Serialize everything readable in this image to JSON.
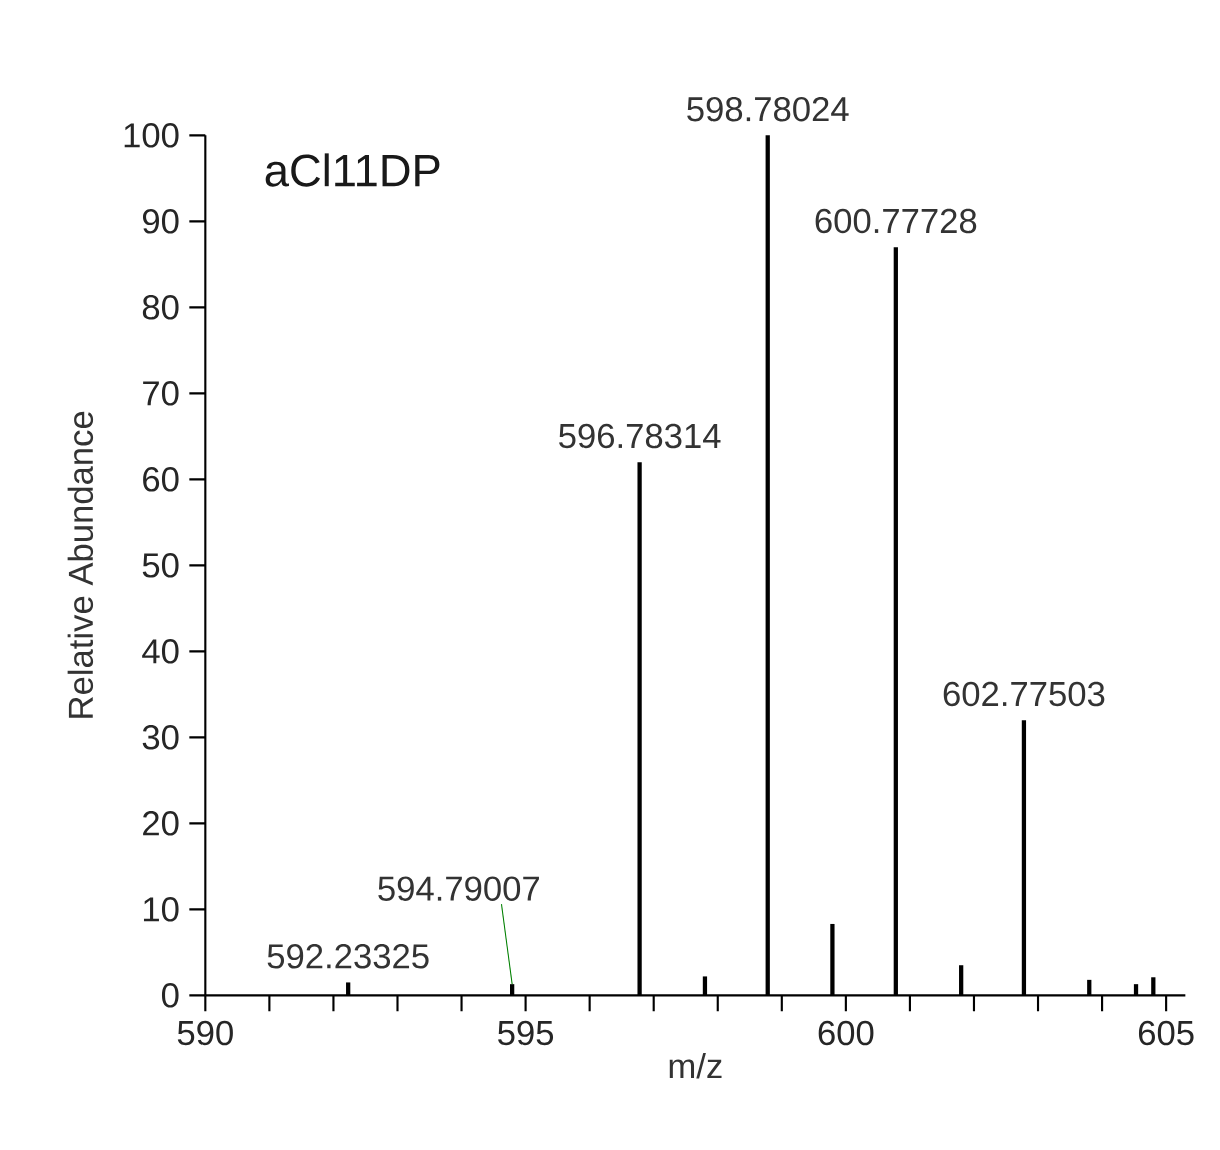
{
  "chart_data": {
    "type": "bar",
    "title": "aCl11DP",
    "xlabel": "m/z",
    "ylabel": "Relative Abundance",
    "x": [
      592.23,
      594.79,
      596.78,
      597.8,
      598.78,
      599.79,
      600.78,
      601.8,
      602.78,
      603.8,
      604.53,
      604.8
    ],
    "values": [
      1.5,
      1.3,
      62,
      2.2,
      100,
      8.3,
      87,
      3.5,
      32,
      1.8,
      1.3,
      2.1
    ],
    "color": "#000000",
    "xlim": [
      590,
      605.3
    ],
    "ylim": [
      0,
      100
    ],
    "xticks": [
      590,
      {
        "value": 591,
        "label": null
      },
      {
        "value": 592,
        "label": null
      },
      {
        "value": 593,
        "label": null
      },
      {
        "value": 594,
        "label": null
      },
      595,
      {
        "value": 596,
        "label": null
      },
      {
        "value": 597,
        "label": null
      },
      {
        "value": 598,
        "label": null
      },
      {
        "value": 599,
        "label": null
      },
      600,
      {
        "value": 601,
        "label": null
      },
      {
        "value": 602,
        "label": null
      },
      {
        "value": 603,
        "label": null
      },
      {
        "value": 604,
        "label": null
      },
      605
    ],
    "yticks": [
      0,
      10,
      20,
      30,
      40,
      50,
      60,
      70,
      80,
      90,
      100
    ],
    "annotations": [
      {
        "text": "592.23325",
        "x": 592.23,
        "y": 1.5
      },
      {
        "text": "594.79007",
        "x": 594.79,
        "y": 1.3
      },
      {
        "text": "596.78314",
        "x": 596.78,
        "y": 62
      },
      {
        "text": "598.78024",
        "x": 598.78,
        "y": 100
      },
      {
        "text": "600.77728",
        "x": 600.78,
        "y": 87
      },
      {
        "text": "602.77503",
        "x": 602.78,
        "y": 32
      }
    ]
  }
}
